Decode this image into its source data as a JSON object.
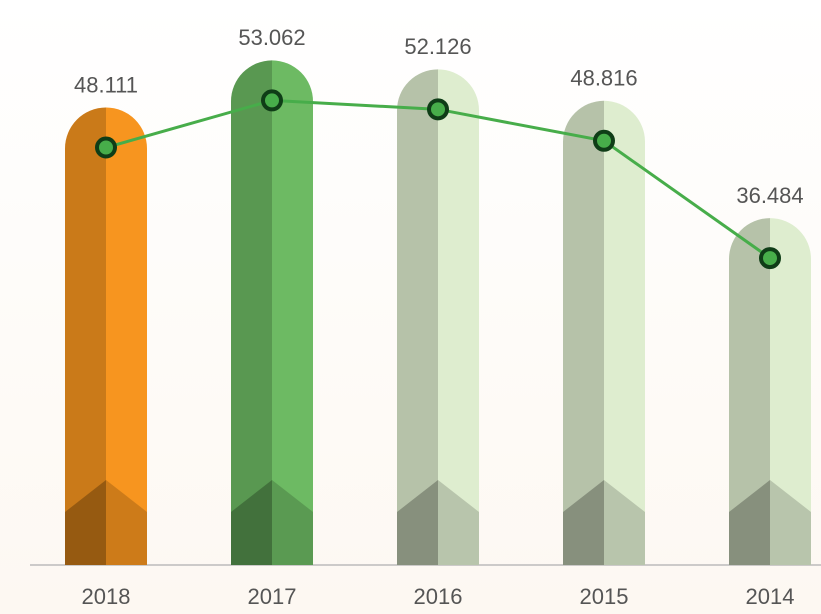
{
  "chart_data": {
    "type": "bar",
    "categories": [
      "2018",
      "2017",
      "2016",
      "2015",
      "2014"
    ],
    "values": [
      48.111,
      53.062,
      52.126,
      48.816,
      36.484
    ],
    "colors": [
      "#f7951f",
      "#6dba63",
      "#deedcf",
      "#deedcf",
      "#deedcf"
    ],
    "line_color": "#47ad4a",
    "marker_color": "#0f3d17",
    "ylim": [
      0,
      55
    ]
  }
}
